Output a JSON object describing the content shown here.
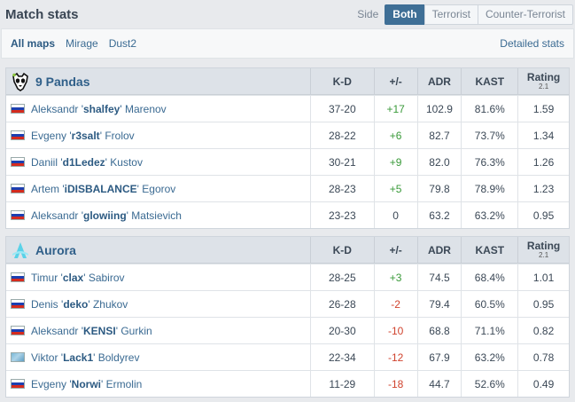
{
  "header": {
    "title": "Match stats",
    "side_label": "Side",
    "sides": [
      "Both",
      "Terrorist",
      "Counter-Terrorist"
    ]
  },
  "maps": {
    "items": [
      "All maps",
      "Mirage",
      "Dust2"
    ],
    "detailed_link": "Detailed stats"
  },
  "columns": {
    "kd": "K-D",
    "pm": "+/-",
    "adr": "ADR",
    "kast": "KAST",
    "rating": "Rating",
    "rating_sub": "2.1"
  },
  "teams": [
    {
      "name": "9 Pandas",
      "logo_icon": "panda-logo-icon",
      "players": [
        {
          "first": "Aleksandr '",
          "nick": "shalfey",
          "last": "' Marenov",
          "flag": "russia-flag-icon",
          "kd": "37-20",
          "pm": "+17",
          "adr": "102.9",
          "kast": "81.6%",
          "rating": "1.59"
        },
        {
          "first": "Evgeny '",
          "nick": "r3salt",
          "last": "' Frolov",
          "flag": "russia-flag-icon",
          "kd": "28-22",
          "pm": "+6",
          "adr": "82.7",
          "kast": "73.7%",
          "rating": "1.34"
        },
        {
          "first": "Daniil '",
          "nick": "d1Ledez",
          "last": "' Kustov",
          "flag": "russia-flag-icon",
          "kd": "30-21",
          "pm": "+9",
          "adr": "82.0",
          "kast": "76.3%",
          "rating": "1.26"
        },
        {
          "first": "Artem '",
          "nick": "iDISBALANCE",
          "last": "' Egorov",
          "flag": "russia-flag-icon",
          "kd": "28-23",
          "pm": "+5",
          "adr": "79.8",
          "kast": "78.9%",
          "rating": "1.23"
        },
        {
          "first": "Aleksandr '",
          "nick": "glowiing",
          "last": "' Matsievich",
          "flag": "russia-flag-icon",
          "kd": "23-23",
          "pm": "0",
          "adr": "63.2",
          "kast": "63.2%",
          "rating": "0.95"
        }
      ]
    },
    {
      "name": "Aurora",
      "logo_icon": "aurora-logo-icon",
      "players": [
        {
          "first": "Timur '",
          "nick": "clax",
          "last": "' Sabirov",
          "flag": "russia-flag-icon",
          "kd": "28-25",
          "pm": "+3",
          "adr": "74.5",
          "kast": "68.4%",
          "rating": "1.01"
        },
        {
          "first": "Denis '",
          "nick": "deko",
          "last": "' Zhukov",
          "flag": "russia-flag-icon",
          "kd": "26-28",
          "pm": "-2",
          "adr": "79.4",
          "kast": "60.5%",
          "rating": "0.95"
        },
        {
          "first": "Aleksandr '",
          "nick": "KENSI",
          "last": "' Gurkin",
          "flag": "russia-flag-icon",
          "kd": "20-30",
          "pm": "-10",
          "adr": "68.8",
          "kast": "71.1%",
          "rating": "0.82"
        },
        {
          "first": "Viktor '",
          "nick": "Lack1",
          "last": "' Boldyrev",
          "flag": "kazakhstan-flag-icon",
          "kd": "22-34",
          "pm": "-12",
          "adr": "67.9",
          "kast": "63.2%",
          "rating": "0.78"
        },
        {
          "first": "Evgeny '",
          "nick": "Norwi",
          "last": "' Ermolin",
          "flag": "russia-flag-icon",
          "kd": "11-29",
          "pm": "-18",
          "adr": "44.7",
          "kast": "52.6%",
          "rating": "0.49"
        }
      ]
    }
  ]
}
